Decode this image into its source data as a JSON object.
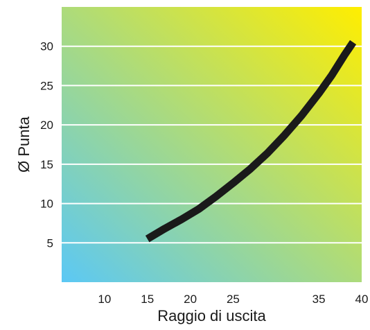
{
  "chart_data": {
    "type": "line",
    "title": "",
    "xlabel": "Raggio di uscita",
    "ylabel": "Ø Punta",
    "xlim": [
      5,
      40
    ],
    "ylim": [
      0,
      35
    ],
    "x_ticks": [
      10,
      15,
      20,
      25,
      35,
      40
    ],
    "y_ticks": [
      5,
      10,
      15,
      20,
      25,
      30
    ],
    "grid": "horizontal",
    "background_gradient": [
      "#5bc8f5",
      "#ffee00"
    ],
    "line_color": "#1a1a1a",
    "series": [
      {
        "x": [
          15,
          17,
          19,
          21,
          23,
          25,
          27,
          29,
          31,
          33,
          35,
          36.5,
          38,
          39
        ],
        "y": [
          5.5,
          6.8,
          8.0,
          9.3,
          10.9,
          12.6,
          14.4,
          16.4,
          18.7,
          21.2,
          24.0,
          26.3,
          28.9,
          30.5
        ]
      }
    ]
  }
}
